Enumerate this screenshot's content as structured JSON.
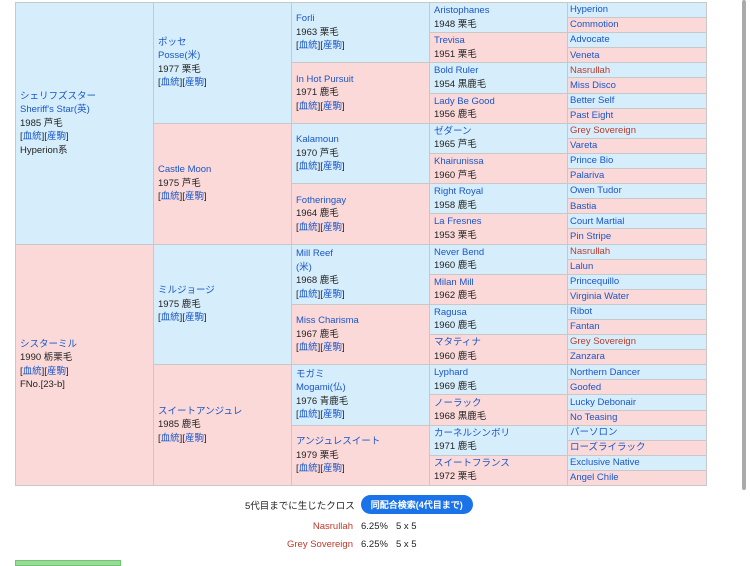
{
  "link_ketto": "血統",
  "link_sanku": "産駒",
  "g1": [
    {
      "name": "シェリフズスター",
      "alt": "Sheriff's Star(英)",
      "detail": "1985 芦毛",
      "extra": "Hyperion系"
    },
    {
      "name": "シスターミル",
      "alt": "",
      "detail": "1990 栃栗毛",
      "extra": "FNo.[23-b]"
    }
  ],
  "g2": [
    {
      "name": "ポッセ",
      "alt": "Posse(米)",
      "detail": "1977 栗毛"
    },
    {
      "name": "Castle Moon",
      "alt": "",
      "detail": "1975 芦毛"
    },
    {
      "name": "ミルジョージ",
      "alt": "",
      "detail": "1975 鹿毛"
    },
    {
      "name": "スイートアンジュレ",
      "alt": "",
      "detail": "1985 鹿毛"
    }
  ],
  "g3": [
    {
      "name": "Forli",
      "alt": "",
      "detail": "1963 栗毛"
    },
    {
      "name": "In Hot Pursuit",
      "alt": "",
      "detail": "1971 鹿毛"
    },
    {
      "name": "Kalamoun",
      "alt": "",
      "detail": "1970 芦毛"
    },
    {
      "name": "Fotheringay",
      "alt": "",
      "detail": "1964 鹿毛"
    },
    {
      "name": "Mill Reef",
      "alt": "(米)",
      "detail": "1968 鹿毛"
    },
    {
      "name": "Miss Charisma",
      "alt": "",
      "detail": "1967 鹿毛"
    },
    {
      "name": "モガミ",
      "alt": "Mogami(仏)",
      "detail": "1976 青鹿毛"
    },
    {
      "name": "アンジュレスイート",
      "alt": "",
      "detail": "1979 栗毛"
    }
  ],
  "g4": [
    {
      "name": "Aristophanes",
      "detail": "1948 栗毛"
    },
    {
      "name": "Trevisa",
      "detail": "1951 栗毛"
    },
    {
      "name": "Bold Ruler",
      "detail": "1954 黒鹿毛"
    },
    {
      "name": "Lady Be Good",
      "detail": "1956 鹿毛"
    },
    {
      "name": "ゼダーン",
      "detail": "1965 芦毛"
    },
    {
      "name": "Khairunissa",
      "detail": "1960 芦毛"
    },
    {
      "name": "Right Royal",
      "detail": "1958 鹿毛"
    },
    {
      "name": "La Fresnes",
      "detail": "1953 栗毛"
    },
    {
      "name": "Never Bend",
      "detail": "1960 鹿毛"
    },
    {
      "name": "Milan Mill",
      "detail": "1962 鹿毛"
    },
    {
      "name": "Ragusa",
      "detail": "1960 鹿毛"
    },
    {
      "name": "マタティナ",
      "detail": "1960 鹿毛"
    },
    {
      "name": "Lyphard",
      "detail": "1969 鹿毛"
    },
    {
      "name": "ノーラック",
      "detail": "1968 黒鹿毛"
    },
    {
      "name": "カーネルシンボリ",
      "detail": "1971 鹿毛"
    },
    {
      "name": "スイートフランス",
      "detail": "1972 栗毛"
    }
  ],
  "g5": [
    "Hyperion",
    "Commotion",
    "Advocate",
    "Veneta",
    "Nasrullah",
    "Miss Disco",
    "Better Self",
    "Past Eight",
    "Grey Sovereign",
    "Vareta",
    "Prince Bio",
    "Palariva",
    "Owen Tudor",
    "Bastia",
    "Court Martial",
    "Pin Stripe",
    "Nasrullah",
    "Lalun",
    "Princequillo",
    "Virginia Water",
    "Ribot",
    "Fantan",
    "Grey Sovereign",
    "Zanzara",
    "Northern Dancer",
    "Goofed",
    "Lucky Debonair",
    "No Teasing",
    "パーソロン",
    "ローズライラック",
    "Exclusive Native",
    "Angel Chile"
  ],
  "g5_red": [
    4,
    8,
    16,
    22
  ],
  "cross": {
    "title": "5代目までに生じたクロス",
    "button": "同配合検索(4代目まで)",
    "rows": [
      {
        "name": "Nasrullah",
        "pct": "6.25%",
        "gen": "5 x 5"
      },
      {
        "name": "Grey Sovereign",
        "pct": "6.25%",
        "gen": "5 x 5"
      }
    ]
  }
}
